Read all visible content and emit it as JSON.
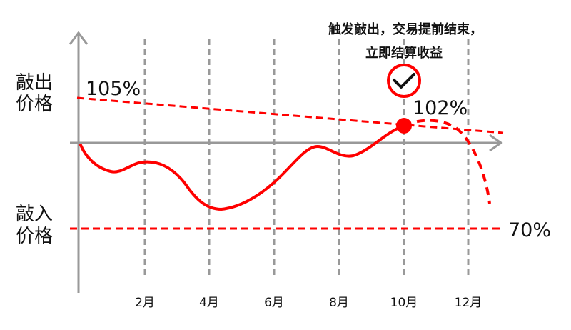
{
  "annotation": {
    "line1": "触发敲出，交易提前结束，",
    "line2": "立即结算收益"
  },
  "knock_out": {
    "label_line1": "敲出",
    "label_line2": "价格",
    "start_level": "105%",
    "hit_level": "102%"
  },
  "knock_in": {
    "label_line1": "敲入",
    "label_line2": "价格",
    "level": "70%"
  },
  "x_ticks": [
    "2月",
    "4月",
    "6月",
    "8月",
    "10月",
    "12月"
  ],
  "icons": {
    "check": "check-circle-icon",
    "hit_point": "knock-out-point"
  },
  "colors": {
    "accent": "#ff0000",
    "axis": "#999999",
    "grid": "#999999",
    "text": "#111111"
  }
}
